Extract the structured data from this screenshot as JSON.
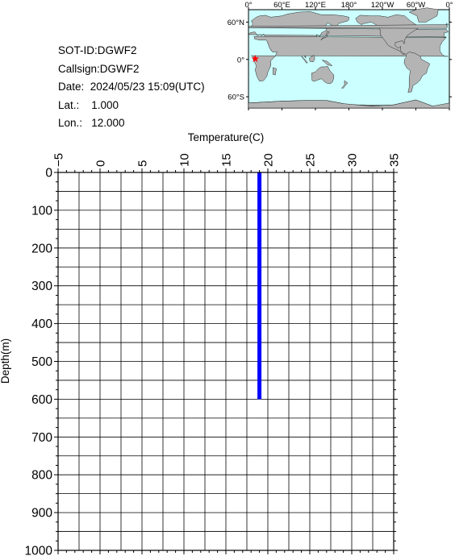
{
  "info": {
    "sot_id": "SOT-ID:DGWF2",
    "callsign": "Callsign:DGWF2",
    "date": "Date:  2024/05/23 15:09(UTC)",
    "lat": "Lat.:    1.000",
    "lon": "Lon.:   12.000"
  },
  "map": {
    "top_lon_labels": [
      "0°",
      "60°E",
      "120°E",
      "180°",
      "120°W",
      "60°W",
      "0°"
    ],
    "lat_labels": [
      {
        "label": "60°N",
        "lat": 60
      },
      {
        "label": "0°",
        "lat": 0
      },
      {
        "label": "60°S",
        "lat": -60
      }
    ],
    "ocean_color": "#ccffff",
    "land_color": "#b4b4b4",
    "marker": {
      "lat": 1.0,
      "lon": 12.0,
      "color": "#ff0000"
    }
  },
  "chart_data": {
    "type": "line",
    "xlabel": "Temperature(C)",
    "ylabel": "Depth(m)",
    "xlim": [
      -5,
      35
    ],
    "ylim": [
      0,
      1000
    ],
    "y_inverted": true,
    "x_axis_position": "top",
    "x_tick_labels": [
      "−5",
      "0",
      "5",
      "10",
      "15",
      "20",
      "25",
      "30",
      "35"
    ],
    "y_tick_labels": [
      "0",
      "100",
      "200",
      "300",
      "400",
      "500",
      "600",
      "700",
      "800",
      "900",
      "1000"
    ],
    "grid": true,
    "series": [
      {
        "line_color": "#0000ff",
        "x": [
          19.0,
          19.0
        ],
        "y": [
          0,
          600
        ]
      }
    ]
  }
}
